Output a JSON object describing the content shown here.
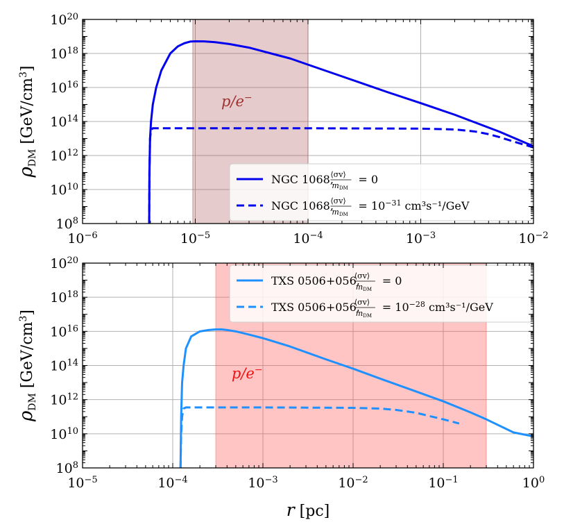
{
  "chart_data": [
    {
      "type": "line",
      "panel": "top",
      "xscale": "log",
      "yscale": "log",
      "xlim": [
        1e-06,
        0.01
      ],
      "ylim": [
        100000000.0,
        1e+20
      ],
      "x_tick_labels": [
        {
          "value": 1e-06,
          "base": "10",
          "exp": "−6"
        },
        {
          "value": 1e-05,
          "base": "10",
          "exp": "−5"
        },
        {
          "value": 0.0001,
          "base": "10",
          "exp": "−4"
        },
        {
          "value": 0.001,
          "base": "10",
          "exp": "−3"
        },
        {
          "value": 0.01,
          "base": "10",
          "exp": "−2"
        }
      ],
      "y_tick_labels": [
        {
          "value": 100000000.0,
          "base": "10",
          "exp": "8"
        },
        {
          "value": 10000000000.0,
          "base": "10",
          "exp": "10"
        },
        {
          "value": 1000000000000.0,
          "base": "10",
          "exp": "12"
        },
        {
          "value": 100000000000000.0,
          "base": "10",
          "exp": "14"
        },
        {
          "value": 1e+16,
          "base": "10",
          "exp": "16"
        },
        {
          "value": 1e+18,
          "base": "10",
          "exp": "18"
        },
        {
          "value": 1e+20,
          "base": "10",
          "exp": "20"
        }
      ],
      "ylabel": {
        "rho": "ρ",
        "sub": "DM",
        "unit": "[GeV/cm",
        "unit_exp": "3",
        "unit_close": "]"
      },
      "grid": true,
      "band": {
        "x0": 9.5e-06,
        "x1": 0.0001,
        "color": "#a85454",
        "opacity": 0.3
      },
      "band_label": {
        "text": "p/e",
        "sup": "−",
        "x": 1.7e-05,
        "y": 800000000000000.0,
        "color": "#a03030"
      },
      "legend": {
        "position": "lower-right",
        "entries": [
          {
            "prefix": "NGC 1068,",
            "num": "⟨σv⟩",
            "den": "m",
            "den_sub": "DM",
            "eq": "= 0",
            "eq_exp": "",
            "eq_tail": "",
            "dash": false
          },
          {
            "prefix": "NGC 1068,",
            "num": "⟨σv⟩",
            "den": "m",
            "den_sub": "DM",
            "eq": "= 10",
            "eq_exp": "−31",
            "eq_tail": " cm³s⁻¹/GeV",
            "dash": true
          }
        ]
      },
      "series": [
        {
          "name": "NGC 1068, ⟨σv⟩/m_DM = 0",
          "color": "#0000ee",
          "dash": false,
          "x": [
            3.9e-06,
            3.92e-06,
            3.97e-06,
            4.05e-06,
            4.2e-06,
            4.5e-06,
            5e-06,
            6e-06,
            7e-06,
            8e-06,
            9e-06,
            1e-05,
            1.2e-05,
            1.5e-05,
            2e-05,
            3e-05,
            5e-05,
            7e-05,
            0.0001,
            0.0002,
            0.0005,
            0.001,
            0.002,
            0.005,
            0.01
          ],
          "y": [
            100000000.0,
            100000000000.0,
            10000000000000.0,
            100000000000000.0,
            1000000000000000.0,
            1e+16,
            1e+17,
            1e+18,
            2.6e+18,
            4e+18,
            5e+18,
            5.2e+18,
            5.1e+18,
            4.6e+18,
            3.6e+18,
            2.2e+18,
            9e+17,
            5e+17,
            2.2e+17,
            4.5e+16,
            5500000000000000.0,
            1200000000000000.0,
            250000000000000.0,
            25000000000000.0,
            3500000000000.0
          ]
        },
        {
          "name": "NGC 1068, ⟨σv⟩/m_DM = 1e-31",
          "color": "#0000ee",
          "dash": true,
          "x": [
            3.9e-06,
            3.92e-06,
            3.97e-06,
            4.05e-06,
            4.2e-06,
            5e-06,
            1e-05,
            0.0001,
            0.001,
            0.002,
            0.003,
            0.004,
            0.005,
            0.007,
            0.01
          ],
          "y": [
            100000000.0,
            100000000000.0,
            10000000000000.0,
            32000000000000.0,
            40000000000000.0,
            40000000000000.0,
            40000000000000.0,
            40000000000000.0,
            38000000000000.0,
            34000000000000.0,
            26000000000000.0,
            18000000000000.0,
            12000000000000.0,
            6000000000000.0,
            3000000000000.0
          ]
        }
      ]
    },
    {
      "type": "line",
      "panel": "bottom",
      "xscale": "log",
      "yscale": "log",
      "xlim": [
        1e-05,
        1
      ],
      "ylim": [
        100000000.0,
        1e+20
      ],
      "xlabel": {
        "text": "r",
        "unit": "[pc]"
      },
      "x_tick_labels": [
        {
          "value": 1e-05,
          "base": "10",
          "exp": "−5"
        },
        {
          "value": 0.0001,
          "base": "10",
          "exp": "−4"
        },
        {
          "value": 0.001,
          "base": "10",
          "exp": "−3"
        },
        {
          "value": 0.01,
          "base": "10",
          "exp": "−2"
        },
        {
          "value": 0.1,
          "base": "10",
          "exp": "−1"
        },
        {
          "value": 1,
          "base": "10",
          "exp": "0"
        }
      ],
      "y_tick_labels": [
        {
          "value": 100000000.0,
          "base": "10",
          "exp": "8"
        },
        {
          "value": 10000000000.0,
          "base": "10",
          "exp": "10"
        },
        {
          "value": 1000000000000.0,
          "base": "10",
          "exp": "12"
        },
        {
          "value": 100000000000000.0,
          "base": "10",
          "exp": "14"
        },
        {
          "value": 1e+16,
          "base": "10",
          "exp": "16"
        },
        {
          "value": 1e+18,
          "base": "10",
          "exp": "18"
        },
        {
          "value": 1e+20,
          "base": "10",
          "exp": "20"
        }
      ],
      "ylabel": {
        "rho": "ρ",
        "sub": "DM",
        "unit": "[GeV/cm",
        "unit_exp": "3",
        "unit_close": "]"
      },
      "grid": true,
      "band": {
        "x0": 0.0003,
        "x1": 0.3,
        "color": "#ff5a5a",
        "opacity": 0.35
      },
      "band_label": {
        "text": "p/e",
        "sup": "−",
        "x": 0.00045,
        "y": 18000000000000.0,
        "color": "#ee1111"
      },
      "legend": {
        "position": "top-right",
        "entries": [
          {
            "prefix": "TXS 0506+056,",
            "num": "⟨σv⟩",
            "den": "m",
            "den_sub": "DM",
            "eq": "= 0",
            "eq_exp": "",
            "eq_tail": "",
            "dash": false
          },
          {
            "prefix": "TXS 0506+056,",
            "num": "⟨σv⟩",
            "den": "m",
            "den_sub": "DM",
            "eq": "= 10",
            "eq_exp": "−28",
            "eq_tail": " cm³s⁻¹/GeV",
            "dash": true
          }
        ]
      },
      "series": [
        {
          "name": "TXS 0506+056, ⟨σv⟩/m_DM = 0",
          "color": "#1e90ff",
          "dash": false,
          "x": [
            0.000122,
            0.000124,
            0.000127,
            0.000132,
            0.00014,
            0.00016,
            0.0002,
            0.00025,
            0.0003,
            0.00035,
            0.0004,
            0.0005,
            0.0007,
            0.001,
            0.002,
            0.005,
            0.01,
            0.02,
            0.05,
            0.1,
            0.2,
            0.3,
            0.6,
            1.0
          ],
          "y": [
            100000000.0,
            100000000000.0,
            10000000000000.0,
            100000000000000.0,
            1000000000000000.0,
            5000000000000000.0,
            1e+16,
            1.2e+16,
            1.3e+16,
            1.3e+16,
            1.2e+16,
            1e+16,
            6500000000000000.0,
            4000000000000000.0,
            1300000000000000.0,
            230000000000000.0,
            65000000000000.0,
            17000000000000.0,
            3000000000000.0,
            800000000000.0,
            180000000000.0,
            70000000000.0,
            12000000000.0,
            7000000000.0
          ]
        },
        {
          "name": "TXS 0506+056, ⟨σv⟩/m_DM = 1e-28",
          "color": "#1e90ff",
          "dash": true,
          "x": [
            0.000122,
            0.000124,
            0.000127,
            0.000132,
            0.00014,
            0.0002,
            0.001,
            0.01,
            0.02,
            0.03,
            0.05,
            0.07,
            0.1,
            0.15
          ],
          "y": [
            100000000.0,
            10000000000.0,
            100000000000.0,
            300000000000.0,
            350000000000.0,
            350000000000.0,
            350000000000.0,
            330000000000.0,
            300000000000.0,
            250000000000.0,
            170000000000.0,
            110000000000.0,
            70000000000.0,
            40000000000.0
          ]
        }
      ]
    }
  ]
}
